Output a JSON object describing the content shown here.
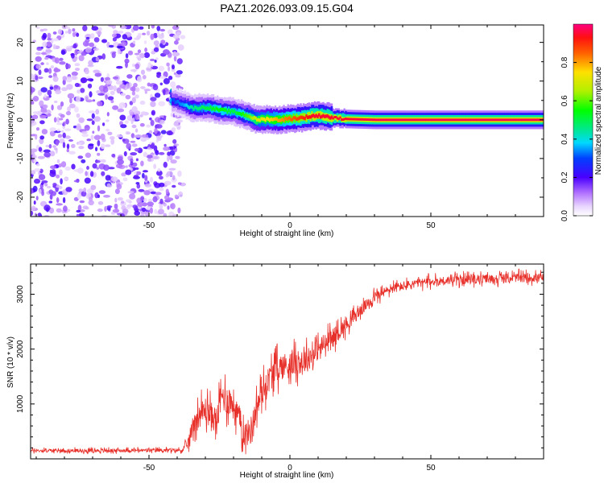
{
  "title": "PAZ1.2026.093.09.15.G04",
  "colors": {
    "snr_line": "#e8302a",
    "axis": "#000000",
    "background": "#ffffff"
  },
  "chart_data": [
    {
      "type": "heatmap",
      "name": "spectrogram",
      "xlabel": "Height of straight line (km)",
      "ylabel": "Frequency (Hz)",
      "xlim": [
        -92,
        90
      ],
      "ylim": [
        -25,
        24.5
      ],
      "x_ticks": [
        -50,
        0,
        50
      ],
      "x_tick_labels": [
        "-50",
        "0",
        "50"
      ],
      "y_ticks": [
        -20,
        -10,
        0,
        10,
        20
      ],
      "y_tick_labels": [
        "-20",
        "-10",
        "0",
        "10",
        "20"
      ],
      "colorbar": {
        "label": "Normalized spectral amplitude",
        "range": [
          0,
          1
        ],
        "ticks": [
          0.0,
          0.2,
          0.4,
          0.6,
          0.8
        ],
        "tick_labels": [
          "0.0",
          "0.2",
          "0.4",
          "0.6",
          "0.8"
        ]
      },
      "regions": [
        {
          "description": "noise",
          "x_range": [
            -92,
            -38
          ],
          "freq_range": [
            -25,
            24.5
          ],
          "amplitude": [
            0.0,
            0.2
          ]
        },
        {
          "description": "onset",
          "x_range": [
            -42,
            -38
          ],
          "freq_range": [
            2,
            8
          ],
          "amplitude": [
            0.2,
            0.5
          ]
        }
      ],
      "ridge": {
        "height": [
          -42,
          -38,
          -35,
          -30,
          -25,
          -20,
          -15,
          -12,
          -8,
          -4,
          0,
          4,
          8,
          12,
          15,
          20,
          30,
          50,
          70,
          90
        ],
        "frequency": [
          5,
          4,
          3,
          3.2,
          2.5,
          2,
          1,
          0,
          0.2,
          0,
          0.3,
          0.5,
          1,
          1,
          0.5,
          0.2,
          0,
          0,
          0,
          0
        ],
        "amplitude": [
          0.3,
          0.35,
          0.45,
          0.5,
          0.55,
          0.5,
          0.6,
          0.7,
          0.75,
          0.8,
          0.85,
          0.9,
          0.95,
          0.95,
          0.95,
          0.95,
          0.97,
          0.97,
          0.97,
          0.97
        ]
      }
    },
    {
      "type": "line",
      "name": "snr",
      "xlabel": "Height of straight line (km)",
      "ylabel": "SNR (10 * v/v)",
      "xlim": [
        -92,
        90
      ],
      "ylim": [
        0,
        3550
      ],
      "x_ticks": [
        -50,
        0,
        50
      ],
      "x_tick_labels": [
        "-50",
        "0",
        "50"
      ],
      "y_ticks": [
        1000,
        2000,
        3000
      ],
      "y_tick_labels": [
        "1000",
        "2000",
        "3000"
      ],
      "series": [
        {
          "name": "SNR",
          "x": [
            -92,
            -70,
            -50,
            -38,
            -36,
            -34,
            -30,
            -26,
            -24,
            -20,
            -16,
            -14,
            -12,
            -10,
            -6,
            -2,
            2,
            6,
            10,
            14,
            18,
            22,
            26,
            30,
            36,
            45,
            55,
            70,
            80,
            90
          ],
          "values": [
            150,
            150,
            155,
            160,
            300,
            700,
            900,
            700,
            1150,
            1000,
            450,
            500,
            900,
            1200,
            1600,
            1700,
            1750,
            1800,
            2000,
            2150,
            2350,
            2550,
            2750,
            2950,
            3100,
            3200,
            3250,
            3280,
            3300,
            3300
          ],
          "noise_amplitude": [
            40,
            40,
            40,
            40,
            150,
            250,
            300,
            300,
            350,
            350,
            300,
            300,
            300,
            300,
            300,
            300,
            280,
            280,
            250,
            220,
            180,
            150,
            130,
            120,
            110,
            100,
            100,
            100,
            100,
            100
          ]
        }
      ]
    }
  ]
}
